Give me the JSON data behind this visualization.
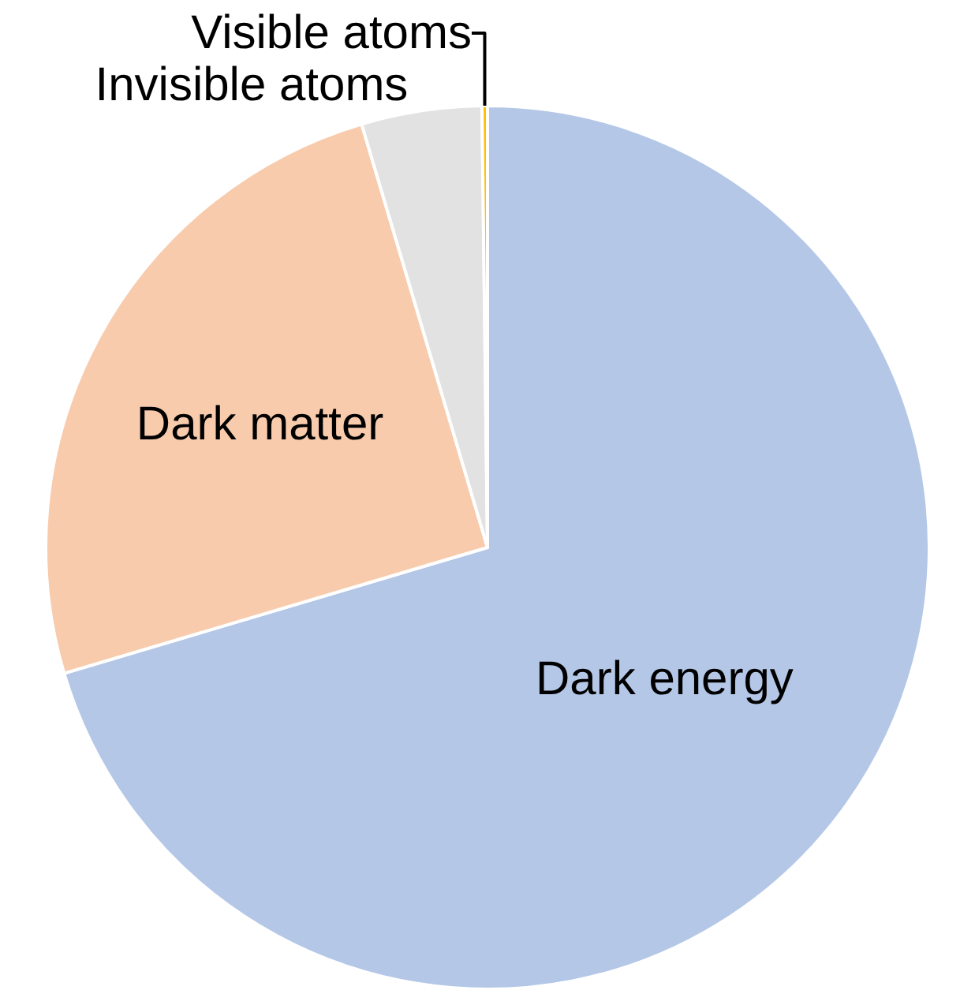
{
  "chart_data": {
    "type": "pie",
    "categories": [
      "Dark energy",
      "Dark matter",
      "Invisible atoms",
      "Visible atoms"
    ],
    "values": [
      70.4,
      25.0,
      4.4,
      0.2
    ],
    "colors": [
      "#b4c7e7",
      "#f8cbad",
      "#e2e2e2",
      "#ffc000"
    ],
    "legend": false
  }
}
